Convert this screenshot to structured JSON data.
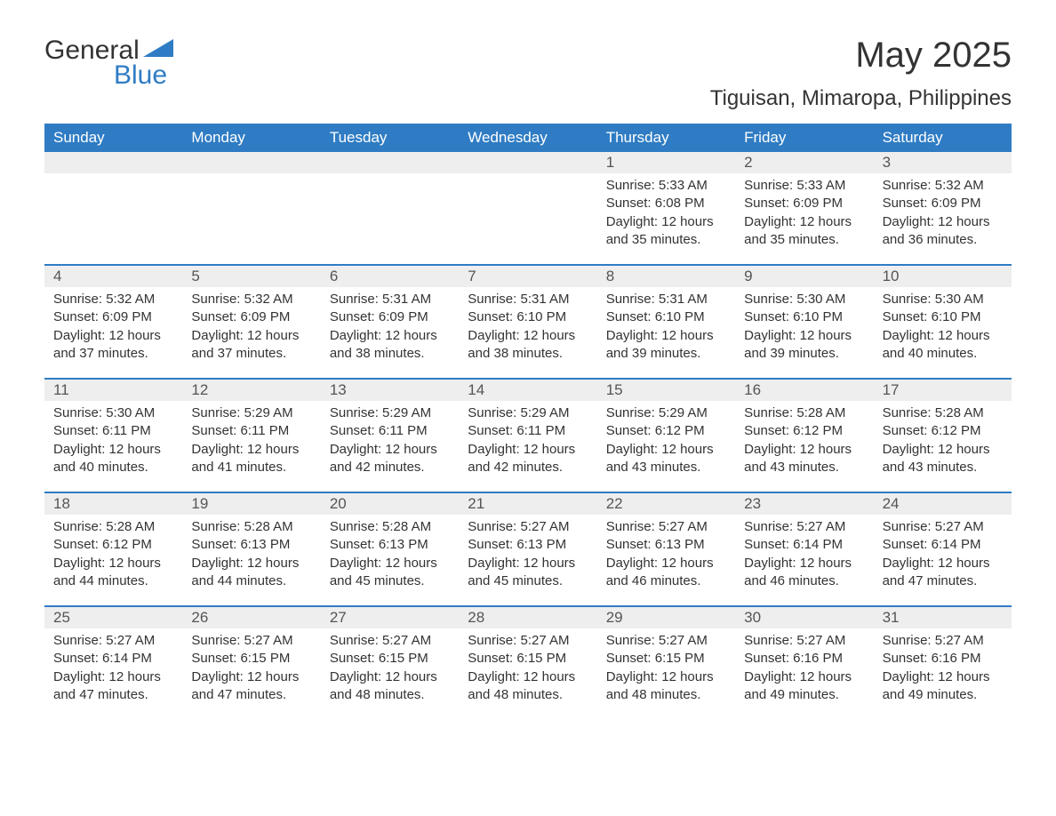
{
  "logo": {
    "text_general": "General",
    "text_blue": "Blue",
    "icon_color": "#2f7cc4"
  },
  "title": {
    "month_year": "May 2025",
    "location": "Tiguisan, Mimaropa, Philippines"
  },
  "colors": {
    "header_bg": "#2f7cc4",
    "header_text": "#ffffff",
    "daynum_bg": "#eeeeee",
    "week_divider": "#2f7cc4",
    "body_text": "#333333"
  },
  "weekdays": [
    "Sunday",
    "Monday",
    "Tuesday",
    "Wednesday",
    "Thursday",
    "Friday",
    "Saturday"
  ],
  "weeks": [
    [
      {
        "day": "",
        "sunrise": "",
        "sunset": "",
        "daylight1": "",
        "daylight2": ""
      },
      {
        "day": "",
        "sunrise": "",
        "sunset": "",
        "daylight1": "",
        "daylight2": ""
      },
      {
        "day": "",
        "sunrise": "",
        "sunset": "",
        "daylight1": "",
        "daylight2": ""
      },
      {
        "day": "",
        "sunrise": "",
        "sunset": "",
        "daylight1": "",
        "daylight2": ""
      },
      {
        "day": "1",
        "sunrise": "Sunrise: 5:33 AM",
        "sunset": "Sunset: 6:08 PM",
        "daylight1": "Daylight: 12 hours",
        "daylight2": "and 35 minutes."
      },
      {
        "day": "2",
        "sunrise": "Sunrise: 5:33 AM",
        "sunset": "Sunset: 6:09 PM",
        "daylight1": "Daylight: 12 hours",
        "daylight2": "and 35 minutes."
      },
      {
        "day": "3",
        "sunrise": "Sunrise: 5:32 AM",
        "sunset": "Sunset: 6:09 PM",
        "daylight1": "Daylight: 12 hours",
        "daylight2": "and 36 minutes."
      }
    ],
    [
      {
        "day": "4",
        "sunrise": "Sunrise: 5:32 AM",
        "sunset": "Sunset: 6:09 PM",
        "daylight1": "Daylight: 12 hours",
        "daylight2": "and 37 minutes."
      },
      {
        "day": "5",
        "sunrise": "Sunrise: 5:32 AM",
        "sunset": "Sunset: 6:09 PM",
        "daylight1": "Daylight: 12 hours",
        "daylight2": "and 37 minutes."
      },
      {
        "day": "6",
        "sunrise": "Sunrise: 5:31 AM",
        "sunset": "Sunset: 6:09 PM",
        "daylight1": "Daylight: 12 hours",
        "daylight2": "and 38 minutes."
      },
      {
        "day": "7",
        "sunrise": "Sunrise: 5:31 AM",
        "sunset": "Sunset: 6:10 PM",
        "daylight1": "Daylight: 12 hours",
        "daylight2": "and 38 minutes."
      },
      {
        "day": "8",
        "sunrise": "Sunrise: 5:31 AM",
        "sunset": "Sunset: 6:10 PM",
        "daylight1": "Daylight: 12 hours",
        "daylight2": "and 39 minutes."
      },
      {
        "day": "9",
        "sunrise": "Sunrise: 5:30 AM",
        "sunset": "Sunset: 6:10 PM",
        "daylight1": "Daylight: 12 hours",
        "daylight2": "and 39 minutes."
      },
      {
        "day": "10",
        "sunrise": "Sunrise: 5:30 AM",
        "sunset": "Sunset: 6:10 PM",
        "daylight1": "Daylight: 12 hours",
        "daylight2": "and 40 minutes."
      }
    ],
    [
      {
        "day": "11",
        "sunrise": "Sunrise: 5:30 AM",
        "sunset": "Sunset: 6:11 PM",
        "daylight1": "Daylight: 12 hours",
        "daylight2": "and 40 minutes."
      },
      {
        "day": "12",
        "sunrise": "Sunrise: 5:29 AM",
        "sunset": "Sunset: 6:11 PM",
        "daylight1": "Daylight: 12 hours",
        "daylight2": "and 41 minutes."
      },
      {
        "day": "13",
        "sunrise": "Sunrise: 5:29 AM",
        "sunset": "Sunset: 6:11 PM",
        "daylight1": "Daylight: 12 hours",
        "daylight2": "and 42 minutes."
      },
      {
        "day": "14",
        "sunrise": "Sunrise: 5:29 AM",
        "sunset": "Sunset: 6:11 PM",
        "daylight1": "Daylight: 12 hours",
        "daylight2": "and 42 minutes."
      },
      {
        "day": "15",
        "sunrise": "Sunrise: 5:29 AM",
        "sunset": "Sunset: 6:12 PM",
        "daylight1": "Daylight: 12 hours",
        "daylight2": "and 43 minutes."
      },
      {
        "day": "16",
        "sunrise": "Sunrise: 5:28 AM",
        "sunset": "Sunset: 6:12 PM",
        "daylight1": "Daylight: 12 hours",
        "daylight2": "and 43 minutes."
      },
      {
        "day": "17",
        "sunrise": "Sunrise: 5:28 AM",
        "sunset": "Sunset: 6:12 PM",
        "daylight1": "Daylight: 12 hours",
        "daylight2": "and 43 minutes."
      }
    ],
    [
      {
        "day": "18",
        "sunrise": "Sunrise: 5:28 AM",
        "sunset": "Sunset: 6:12 PM",
        "daylight1": "Daylight: 12 hours",
        "daylight2": "and 44 minutes."
      },
      {
        "day": "19",
        "sunrise": "Sunrise: 5:28 AM",
        "sunset": "Sunset: 6:13 PM",
        "daylight1": "Daylight: 12 hours",
        "daylight2": "and 44 minutes."
      },
      {
        "day": "20",
        "sunrise": "Sunrise: 5:28 AM",
        "sunset": "Sunset: 6:13 PM",
        "daylight1": "Daylight: 12 hours",
        "daylight2": "and 45 minutes."
      },
      {
        "day": "21",
        "sunrise": "Sunrise: 5:27 AM",
        "sunset": "Sunset: 6:13 PM",
        "daylight1": "Daylight: 12 hours",
        "daylight2": "and 45 minutes."
      },
      {
        "day": "22",
        "sunrise": "Sunrise: 5:27 AM",
        "sunset": "Sunset: 6:13 PM",
        "daylight1": "Daylight: 12 hours",
        "daylight2": "and 46 minutes."
      },
      {
        "day": "23",
        "sunrise": "Sunrise: 5:27 AM",
        "sunset": "Sunset: 6:14 PM",
        "daylight1": "Daylight: 12 hours",
        "daylight2": "and 46 minutes."
      },
      {
        "day": "24",
        "sunrise": "Sunrise: 5:27 AM",
        "sunset": "Sunset: 6:14 PM",
        "daylight1": "Daylight: 12 hours",
        "daylight2": "and 47 minutes."
      }
    ],
    [
      {
        "day": "25",
        "sunrise": "Sunrise: 5:27 AM",
        "sunset": "Sunset: 6:14 PM",
        "daylight1": "Daylight: 12 hours",
        "daylight2": "and 47 minutes."
      },
      {
        "day": "26",
        "sunrise": "Sunrise: 5:27 AM",
        "sunset": "Sunset: 6:15 PM",
        "daylight1": "Daylight: 12 hours",
        "daylight2": "and 47 minutes."
      },
      {
        "day": "27",
        "sunrise": "Sunrise: 5:27 AM",
        "sunset": "Sunset: 6:15 PM",
        "daylight1": "Daylight: 12 hours",
        "daylight2": "and 48 minutes."
      },
      {
        "day": "28",
        "sunrise": "Sunrise: 5:27 AM",
        "sunset": "Sunset: 6:15 PM",
        "daylight1": "Daylight: 12 hours",
        "daylight2": "and 48 minutes."
      },
      {
        "day": "29",
        "sunrise": "Sunrise: 5:27 AM",
        "sunset": "Sunset: 6:15 PM",
        "daylight1": "Daylight: 12 hours",
        "daylight2": "and 48 minutes."
      },
      {
        "day": "30",
        "sunrise": "Sunrise: 5:27 AM",
        "sunset": "Sunset: 6:16 PM",
        "daylight1": "Daylight: 12 hours",
        "daylight2": "and 49 minutes."
      },
      {
        "day": "31",
        "sunrise": "Sunrise: 5:27 AM",
        "sunset": "Sunset: 6:16 PM",
        "daylight1": "Daylight: 12 hours",
        "daylight2": "and 49 minutes."
      }
    ]
  ]
}
